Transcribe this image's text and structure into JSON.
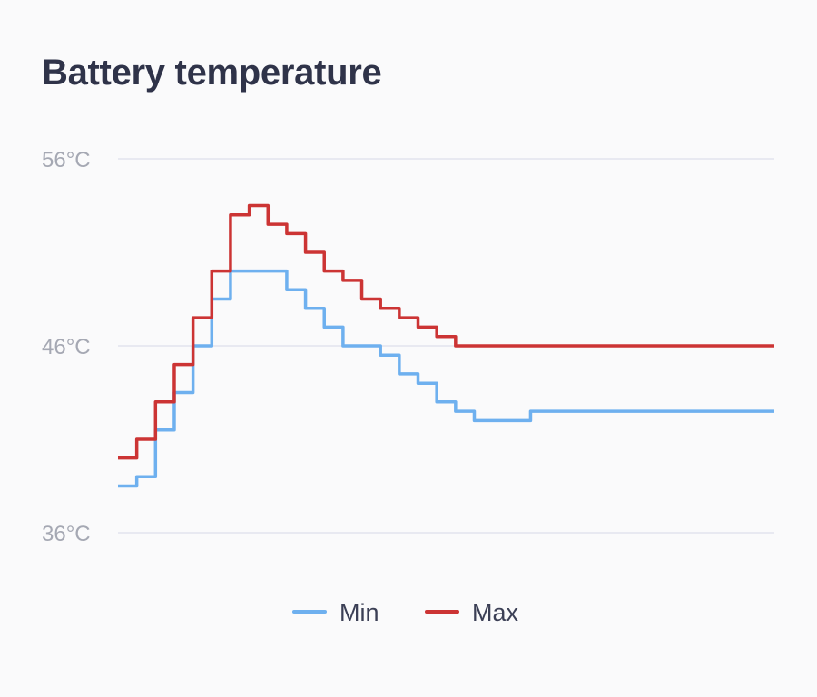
{
  "chart_data": {
    "type": "line",
    "title": "Battery temperature",
    "xlabel": "",
    "ylabel": "",
    "ylim": [
      36,
      56
    ],
    "yticks": [
      56,
      46,
      36
    ],
    "ytick_labels": [
      "56°C",
      "46°C",
      "36°C"
    ],
    "grid": true,
    "legend_position": "bottom",
    "x": [
      0,
      1,
      2,
      3,
      4,
      5,
      6,
      7,
      8,
      9,
      10,
      11,
      12,
      13,
      14,
      15,
      16,
      17,
      18,
      19,
      20,
      21,
      22,
      23,
      24,
      25,
      26,
      27,
      28,
      29,
      30,
      31,
      32,
      33,
      34,
      35
    ],
    "series": [
      {
        "name": "Min",
        "color": "#6eb0ef",
        "values": [
          38.5,
          39,
          41.5,
          43.5,
          46,
          48.5,
          50,
          50,
          50,
          49,
          48,
          47,
          46,
          46,
          45.5,
          44.5,
          44,
          43,
          42.5,
          42,
          42,
          42,
          42.5,
          42.5,
          42.5,
          42.5,
          42.5,
          42.5,
          42.5,
          42.5,
          42.5,
          42.5,
          42.5,
          42.5,
          42.5,
          42.5
        ]
      },
      {
        "name": "Max",
        "color": "#cc3434",
        "values": [
          40,
          41,
          43,
          45,
          47.5,
          50,
          53,
          53.5,
          52.5,
          52,
          51,
          50,
          49.5,
          48.5,
          48,
          47.5,
          47,
          46.5,
          46,
          46,
          46,
          46,
          46,
          46,
          46,
          46,
          46,
          46,
          46,
          46,
          46,
          46,
          46,
          46,
          46,
          46
        ]
      }
    ]
  }
}
